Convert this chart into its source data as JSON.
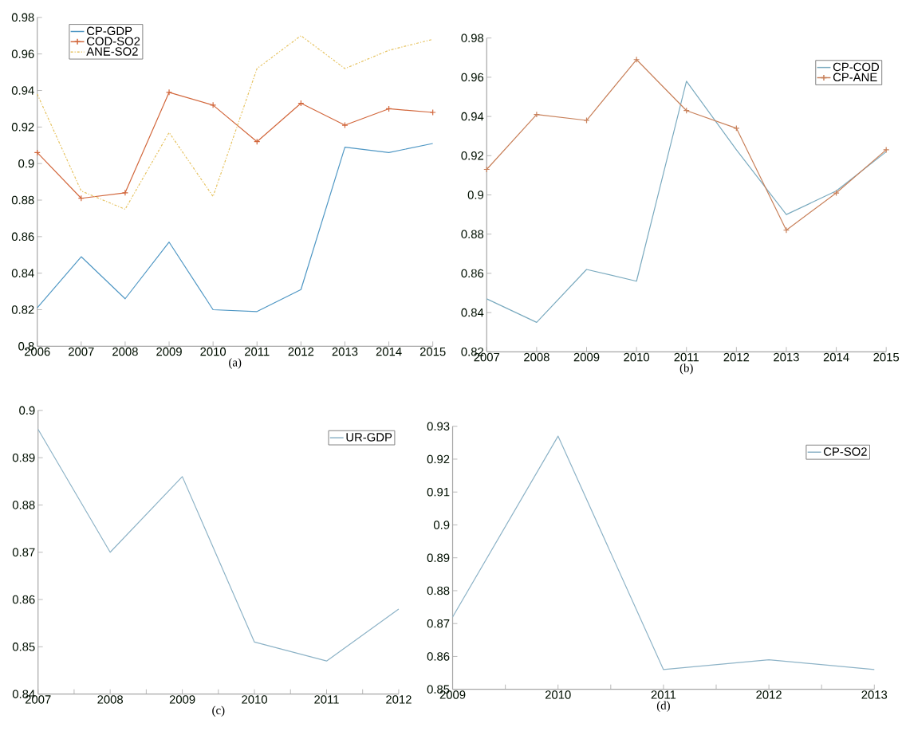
{
  "chart_data": [
    {
      "type": "line",
      "xlabel": "(a)",
      "x": [
        2006,
        2007,
        2008,
        2009,
        2010,
        2011,
        2012,
        2013,
        2014,
        2015
      ],
      "xlim": [
        2006,
        2015
      ],
      "xticks": [
        2006,
        2007,
        2008,
        2009,
        2010,
        2011,
        2012,
        2013,
        2014,
        2015
      ],
      "ylim": [
        0.8,
        0.98
      ],
      "yticks": [
        0.8,
        0.82,
        0.84,
        0.86,
        0.88,
        0.9,
        0.92,
        0.94,
        0.96,
        0.98
      ],
      "legend": "top left",
      "marker": "none",
      "line_style": "solid",
      "series": [
        {
          "name": "CP-GDP",
          "color": "#4f97c4",
          "values": [
            0.821,
            0.849,
            0.826,
            0.857,
            0.82,
            0.819,
            0.831,
            0.909,
            0.906,
            0.911
          ]
        },
        {
          "name": "COD-SO2",
          "color": "#d2673c",
          "marker": "cross",
          "values": [
            0.906,
            0.881,
            0.884,
            0.939,
            0.932,
            0.912,
            0.933,
            0.921,
            0.93,
            0.928
          ]
        },
        {
          "name": "ANE-SO2",
          "color": "#e6c25e",
          "line_style": "dashdot",
          "values": [
            0.938,
            0.885,
            0.875,
            0.917,
            0.882,
            0.952,
            0.97,
            0.952,
            0.962,
            0.968
          ]
        }
      ]
    },
    {
      "type": "line",
      "xlabel": "(b)",
      "x": [
        2007,
        2008,
        2009,
        2010,
        2011,
        2012,
        2013,
        2014,
        2015
      ],
      "xlim": [
        2007,
        2015
      ],
      "xticks": [
        2007,
        2008,
        2009,
        2010,
        2011,
        2012,
        2013,
        2014,
        2015
      ],
      "ylim": [
        0.82,
        0.98
      ],
      "yticks": [
        0.82,
        0.84,
        0.86,
        0.88,
        0.9,
        0.92,
        0.94,
        0.96,
        0.98
      ],
      "legend": "top right",
      "marker": "none",
      "line_style": "solid",
      "series": [
        {
          "name": "CP-COD",
          "color": "#7aaabf",
          "values": [
            0.847,
            0.835,
            0.862,
            0.856,
            0.958,
            0.923,
            0.89,
            0.902,
            0.922
          ]
        },
        {
          "name": "CP-ANE",
          "color": "#c8805a",
          "marker": "cross",
          "values": [
            0.913,
            0.941,
            0.938,
            0.969,
            0.943,
            0.934,
            0.882,
            0.901,
            0.923
          ]
        }
      ]
    },
    {
      "type": "line",
      "xlabel": "(c)",
      "x": [
        2007,
        2008,
        2009,
        2010,
        2011,
        2012
      ],
      "xlim": [
        2007,
        2012
      ],
      "xticks": [
        2007,
        {
          "value": 2007.5,
          "label": null
        },
        2008,
        {
          "value": 2008.5,
          "label": null
        },
        2009,
        {
          "value": 2009.5,
          "label": null
        },
        2010,
        {
          "value": 2010.5,
          "label": null
        },
        2011,
        {
          "value": 2011.5,
          "label": null
        },
        2012
      ],
      "ylim": [
        0.84,
        0.9
      ],
      "yticks": [
        0.84,
        0.85,
        0.86,
        0.87,
        0.88,
        0.89,
        0.9
      ],
      "legend": "top right",
      "marker": "none",
      "line_style": "solid",
      "series": [
        {
          "name": "UR-GDP",
          "color": "#8db3c7",
          "values": [
            0.896,
            0.87,
            0.886,
            0.851,
            0.847,
            0.858
          ]
        }
      ]
    },
    {
      "type": "line",
      "xlabel": "(d)",
      "x": [
        2009,
        2010,
        2011,
        2012,
        2013
      ],
      "xlim": [
        2009,
        2013
      ],
      "xticks": [
        2009,
        {
          "value": 2009.5,
          "label": null
        },
        2010,
        {
          "value": 2010.5,
          "label": null
        },
        2011,
        {
          "value": 2011.5,
          "label": null
        },
        2012,
        {
          "value": 2012.5,
          "label": null
        },
        2013
      ],
      "ylim": [
        0.85,
        0.93
      ],
      "yticks": [
        0.85,
        0.86,
        0.87,
        0.88,
        0.89,
        0.9,
        0.91,
        0.92,
        0.93
      ],
      "legend": "top right",
      "marker": "none",
      "line_style": "solid",
      "series": [
        {
          "name": "CP-SO2",
          "color": "#8db3c7",
          "values": [
            0.872,
            0.927,
            0.856,
            0.859,
            0.856
          ]
        }
      ]
    }
  ]
}
